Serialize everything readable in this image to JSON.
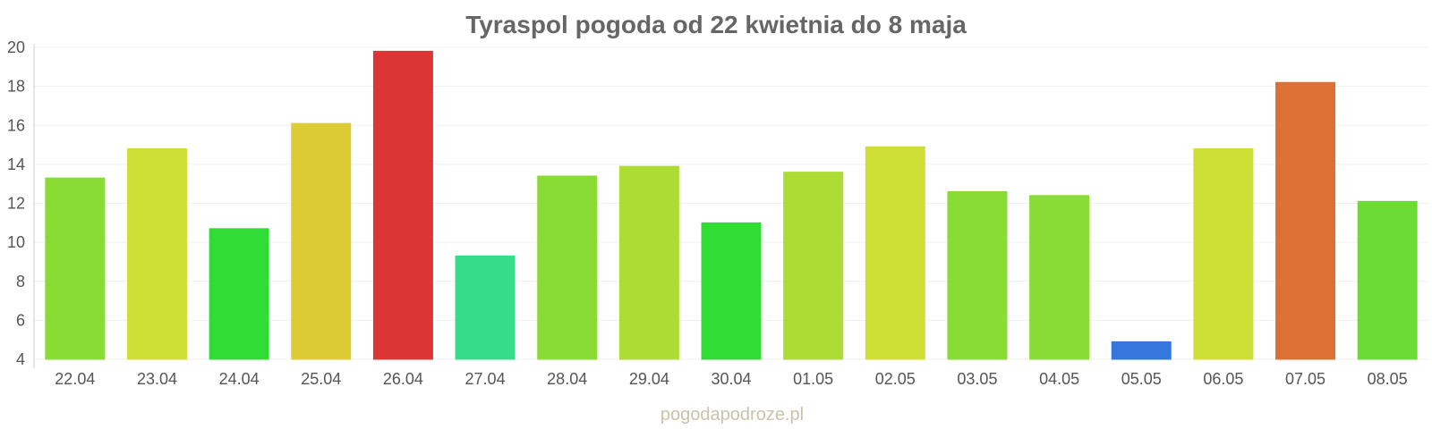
{
  "chart_data": {
    "type": "bar",
    "title": "Tyraspol pogoda od 22 kwietnia do 8 maja",
    "xlabel": "",
    "ylabel": "",
    "ylim": [
      4,
      20
    ],
    "yticks": [
      4,
      6,
      8,
      10,
      12,
      14,
      16,
      18,
      20
    ],
    "grid": true,
    "categories": [
      "22.04",
      "23.04",
      "24.04",
      "25.04",
      "26.04",
      "27.04",
      "28.04",
      "29.04",
      "30.04",
      "01.05",
      "02.05",
      "03.05",
      "04.05",
      "05.05",
      "06.05",
      "07.05",
      "08.05"
    ],
    "values": [
      13.3,
      14.8,
      10.7,
      16.1,
      19.8,
      9.3,
      13.4,
      13.9,
      11.0,
      13.6,
      14.9,
      12.6,
      12.4,
      4.9,
      14.8,
      18.2,
      12.1
    ],
    "colors": [
      "#89dc35",
      "#cedf35",
      "#31dc35",
      "#dccb35",
      "#dc3535",
      "#35dc8a",
      "#89dc35",
      "#addc35",
      "#31dc35",
      "#addc35",
      "#cedf35",
      "#89dc35",
      "#89dc35",
      "#3577dc",
      "#cedf35",
      "#dc7035",
      "#6cdc35"
    ]
  },
  "watermark": "pogodapodroze.pl"
}
